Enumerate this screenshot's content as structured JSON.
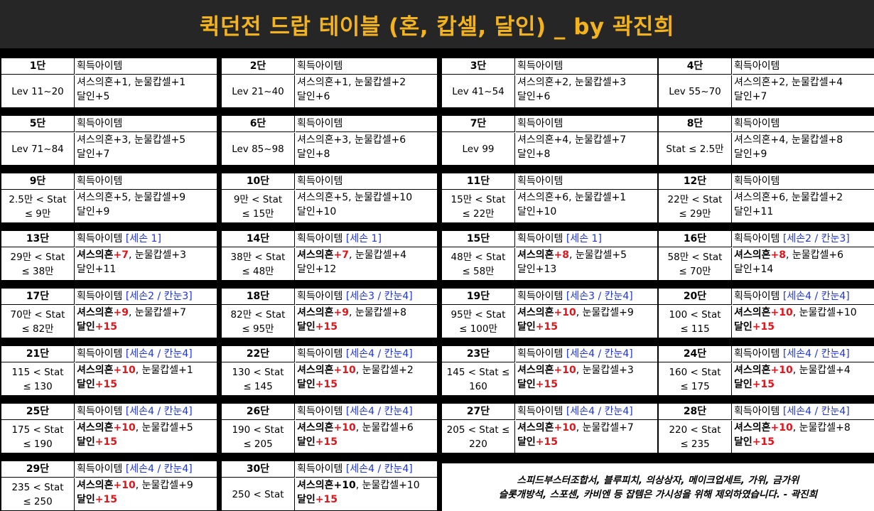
{
  "title": "퀵던전 드랍 테이블 (혼, 캅셀, 달인) _ by 곽진희",
  "header_label": "획득아이템",
  "stages": [
    {
      "stage": "1단",
      "range": [
        "Lev 11~20"
      ],
      "tag": "",
      "lines": [
        [
          {
            "t": "셔스의혼+1, 눈물캅셀+1"
          }
        ],
        [
          {
            "t": "달인+5"
          }
        ]
      ]
    },
    {
      "stage": "2단",
      "range": [
        "Lev 21~40"
      ],
      "tag": "",
      "lines": [
        [
          {
            "t": "셔스의혼+1, 눈물캅셀+2"
          }
        ],
        [
          {
            "t": "달인+6"
          }
        ]
      ]
    },
    {
      "stage": "3단",
      "range": [
        "Lev 41~54"
      ],
      "tag": "",
      "lines": [
        [
          {
            "t": "셔스의혼+2, 눈물캅셀+3"
          }
        ],
        [
          {
            "t": "달인+6"
          }
        ]
      ]
    },
    {
      "stage": "4단",
      "range": [
        "Lev 55~70"
      ],
      "tag": "",
      "lines": [
        [
          {
            "t": "셔스의혼+2, 눈물캅셀+4"
          }
        ],
        [
          {
            "t": "달인+7"
          }
        ]
      ]
    },
    {
      "stage": "5단",
      "range": [
        "Lev 71~84"
      ],
      "tag": "",
      "lines": [
        [
          {
            "t": "셔스의혼+3, 눈물캅셀+5"
          }
        ],
        [
          {
            "t": "달인+7"
          }
        ]
      ]
    },
    {
      "stage": "6단",
      "range": [
        "Lev 85~98"
      ],
      "tag": "",
      "lines": [
        [
          {
            "t": "셔스의혼+3, 눈물캅셀+6"
          }
        ],
        [
          {
            "t": "달인+8"
          }
        ]
      ]
    },
    {
      "stage": "7단",
      "range": [
        "Lev 99"
      ],
      "tag": "",
      "lines": [
        [
          {
            "t": "셔스의혼+4, 눈물캅셀+7"
          }
        ],
        [
          {
            "t": "달인+8"
          }
        ]
      ]
    },
    {
      "stage": "8단",
      "range": [
        "Stat ≤ 2.5만"
      ],
      "tag": "",
      "lines": [
        [
          {
            "t": "셔스의혼+4, 눈물캅셀+8"
          }
        ],
        [
          {
            "t": "달인+9"
          }
        ]
      ]
    },
    {
      "stage": "9단",
      "range": [
        "2.5만 < Stat",
        "≤ 9만"
      ],
      "tag": "",
      "lines": [
        [
          {
            "t": "셔스의혼+5, 눈물캅셀+9"
          }
        ],
        [
          {
            "t": "달인+9"
          }
        ]
      ]
    },
    {
      "stage": "10단",
      "range": [
        "9만 < Stat",
        "≤ 15만"
      ],
      "tag": "",
      "lines": [
        [
          {
            "t": "셔스의혼+5, 눈물캅셀+10"
          }
        ],
        [
          {
            "t": "달인+10"
          }
        ]
      ]
    },
    {
      "stage": "11단",
      "range": [
        "15만 < Stat",
        "≤ 22만"
      ],
      "tag": "",
      "lines": [
        [
          {
            "t": "셔스의혼+6, 눈물캅셀+1"
          }
        ],
        [
          {
            "t": "달인+10"
          }
        ]
      ]
    },
    {
      "stage": "12단",
      "range": [
        "22만 < Stat",
        "≤ 29만"
      ],
      "tag": "",
      "lines": [
        [
          {
            "t": "셔스의혼+6, 눈물캅셀+2"
          }
        ],
        [
          {
            "t": "달인+11"
          }
        ]
      ]
    },
    {
      "stage": "13단",
      "range": [
        "29만 < Stat",
        "≤ 38만"
      ],
      "tag": "[세손 1]",
      "lines": [
        [
          {
            "t": "셔스의혼",
            "s": "b"
          },
          {
            "t": "+7",
            "s": "red"
          },
          {
            "t": ", 눈물캅셀+3"
          }
        ],
        [
          {
            "t": "달인+11"
          }
        ]
      ]
    },
    {
      "stage": "14단",
      "range": [
        "38만 < Stat",
        "≤ 48만"
      ],
      "tag": "[세손 1]",
      "lines": [
        [
          {
            "t": "셔스의혼",
            "s": "b"
          },
          {
            "t": "+7",
            "s": "red"
          },
          {
            "t": ", 눈물캅셀+4"
          }
        ],
        [
          {
            "t": "달인+12"
          }
        ]
      ]
    },
    {
      "stage": "15단",
      "range": [
        "48만 < Stat",
        "≤ 58만"
      ],
      "tag": "[세손 1]",
      "lines": [
        [
          {
            "t": "셔스의혼",
            "s": "b"
          },
          {
            "t": "+8",
            "s": "red"
          },
          {
            "t": ", 눈물캅셀+5"
          }
        ],
        [
          {
            "t": "달인+13"
          }
        ]
      ]
    },
    {
      "stage": "16단",
      "range": [
        "58만 < Stat",
        "≤ 70만"
      ],
      "tag": "[세손2 / 칸눈3]",
      "lines": [
        [
          {
            "t": "셔스의혼",
            "s": "b"
          },
          {
            "t": "+8",
            "s": "red"
          },
          {
            "t": ", 눈물캅셀+6"
          }
        ],
        [
          {
            "t": "달인+14"
          }
        ]
      ]
    },
    {
      "stage": "17단",
      "range": [
        "70만 < Stat",
        "≤ 82만"
      ],
      "tag": "[세손2 / 칸눈3]",
      "lines": [
        [
          {
            "t": "셔스의혼",
            "s": "b"
          },
          {
            "t": "+9",
            "s": "red"
          },
          {
            "t": ", 눈물캅셀+7"
          }
        ],
        [
          {
            "t": "달인",
            "s": "b"
          },
          {
            "t": "+15",
            "s": "red"
          }
        ]
      ]
    },
    {
      "stage": "18단",
      "range": [
        "82만 < Stat",
        "≤ 95만"
      ],
      "tag": "[세손3 / 칸눈4]",
      "lines": [
        [
          {
            "t": "셔스의혼",
            "s": "b"
          },
          {
            "t": "+9",
            "s": "red"
          },
          {
            "t": ", 눈물캅셀+8"
          }
        ],
        [
          {
            "t": "달인",
            "s": "b"
          },
          {
            "t": "+15",
            "s": "red"
          }
        ]
      ]
    },
    {
      "stage": "19단",
      "range": [
        "95만 < Stat",
        "≤ 100만"
      ],
      "tag": "[세손3 / 칸눈4]",
      "lines": [
        [
          {
            "t": "셔스의혼",
            "s": "b"
          },
          {
            "t": "+10",
            "s": "red"
          },
          {
            "t": ", 눈물캅셀+9"
          }
        ],
        [
          {
            "t": "달인",
            "s": "b"
          },
          {
            "t": "+15",
            "s": "red"
          }
        ]
      ]
    },
    {
      "stage": "20단",
      "range": [
        "100 < Stat",
        "≤ 115"
      ],
      "tag": "[세손4 / 칸눈4]",
      "lines": [
        [
          {
            "t": "셔스의혼",
            "s": "b"
          },
          {
            "t": "+10",
            "s": "red"
          },
          {
            "t": ", 눈물캅셀+10"
          }
        ],
        [
          {
            "t": "달인",
            "s": "b"
          },
          {
            "t": "+15",
            "s": "red"
          }
        ]
      ]
    },
    {
      "stage": "21단",
      "range": [
        "115 < Stat",
        "≤ 130"
      ],
      "tag": "[세손4 / 칸눈4]",
      "lines": [
        [
          {
            "t": "셔스의혼",
            "s": "b"
          },
          {
            "t": "+10",
            "s": "red"
          },
          {
            "t": ", 눈물캅셀+1"
          }
        ],
        [
          {
            "t": "달인",
            "s": "b"
          },
          {
            "t": "+15",
            "s": "red"
          }
        ]
      ]
    },
    {
      "stage": "22단",
      "range": [
        "130 < Stat",
        "≤ 145"
      ],
      "tag": "[세손4 / 칸눈4]",
      "lines": [
        [
          {
            "t": "셔스의혼",
            "s": "b"
          },
          {
            "t": "+10",
            "s": "red"
          },
          {
            "t": ", 눈물캅셀+2"
          }
        ],
        [
          {
            "t": "달인",
            "s": "b"
          },
          {
            "t": "+15",
            "s": "red"
          }
        ]
      ]
    },
    {
      "stage": "23단",
      "range": [
        "145 < Stat ≤",
        "160"
      ],
      "tag": "[세손4 / 칸눈4]",
      "lines": [
        [
          {
            "t": "셔스의혼",
            "s": "b"
          },
          {
            "t": "+10",
            "s": "red"
          },
          {
            "t": ", 눈물캅셀+3"
          }
        ],
        [
          {
            "t": "달인",
            "s": "b"
          },
          {
            "t": "+15",
            "s": "red"
          }
        ]
      ]
    },
    {
      "stage": "24단",
      "range": [
        "160 < Stat",
        "≤ 175"
      ],
      "tag": "[세손4 / 칸눈4]",
      "lines": [
        [
          {
            "t": "셔스의혼",
            "s": "b"
          },
          {
            "t": "+10",
            "s": "red"
          },
          {
            "t": ", 눈물캅셀+4"
          }
        ],
        [
          {
            "t": "달인",
            "s": "b"
          },
          {
            "t": "+15",
            "s": "red"
          }
        ]
      ]
    },
    {
      "stage": "25단",
      "range": [
        "175 < Stat",
        "≤ 190"
      ],
      "tag": "[세손4 / 칸눈4]",
      "lines": [
        [
          {
            "t": "셔스의혼",
            "s": "b"
          },
          {
            "t": "+10",
            "s": "red"
          },
          {
            "t": ", 눈물캅셀+5"
          }
        ],
        [
          {
            "t": "달인",
            "s": "b"
          },
          {
            "t": "+15",
            "s": "red"
          }
        ]
      ]
    },
    {
      "stage": "26단",
      "range": [
        "190 < Stat",
        "≤ 205"
      ],
      "tag": "[세손4 / 칸눈4]",
      "lines": [
        [
          {
            "t": "셔스의혼",
            "s": "b"
          },
          {
            "t": "+10",
            "s": "red"
          },
          {
            "t": ", 눈물캅셀+6"
          }
        ],
        [
          {
            "t": "달인",
            "s": "b"
          },
          {
            "t": "+15",
            "s": "red"
          }
        ]
      ]
    },
    {
      "stage": "27단",
      "range": [
        "205 < Stat ≤",
        "220"
      ],
      "tag": "[세손4 / 칸눈4]",
      "lines": [
        [
          {
            "t": "셔스의혼",
            "s": "b"
          },
          {
            "t": "+10",
            "s": "red"
          },
          {
            "t": ", 눈물캅셀+7"
          }
        ],
        [
          {
            "t": "달인",
            "s": "b"
          },
          {
            "t": "+15",
            "s": "red"
          }
        ]
      ]
    },
    {
      "stage": "28단",
      "range": [
        "220 < Stat",
        "≤ 235"
      ],
      "tag": "[세손4 / 칸눈4]",
      "lines": [
        [
          {
            "t": "셔스의혼",
            "s": "b"
          },
          {
            "t": "+10",
            "s": "red"
          },
          {
            "t": ", 눈물캅셀+8"
          }
        ],
        [
          {
            "t": "달인",
            "s": "b"
          },
          {
            "t": "+15",
            "s": "red"
          }
        ]
      ]
    },
    {
      "stage": "29단",
      "range": [
        "235 < Stat",
        "≤ 250"
      ],
      "tag": "[세손4 / 칸눈4]",
      "lines": [
        [
          {
            "t": "셔스의혼",
            "s": "b"
          },
          {
            "t": "+10",
            "s": "red"
          },
          {
            "t": ", 눈물캅셀+9"
          }
        ],
        [
          {
            "t": "달인",
            "s": "b"
          },
          {
            "t": "+15",
            "s": "red"
          }
        ]
      ]
    },
    {
      "stage": "30단",
      "range": [
        "250 < Stat"
      ],
      "tag": "[세손4 / 칸눈4]",
      "lines": [
        [
          {
            "t": "셔스의혼+10",
            "s": "b"
          },
          {
            "t": ", 눈물캅셀+10"
          }
        ],
        [
          {
            "t": "달인",
            "s": "b"
          },
          {
            "t": "+15",
            "s": "red"
          }
        ]
      ]
    }
  ],
  "note": {
    "line1": "스피드부스터조합서, 블루피치, 의상상자, 메이크업세트, 가위, 금가위",
    "line2": "슬롯개방석, 스포센, 카비엔 등 잡템은 가시성을 위해 제외하였습니다. - 곽진희"
  },
  "colors": {
    "header_bg": "#262626",
    "title": "#f2b31f",
    "tag": "#1f35d6",
    "emphasis": "#e0141a"
  }
}
